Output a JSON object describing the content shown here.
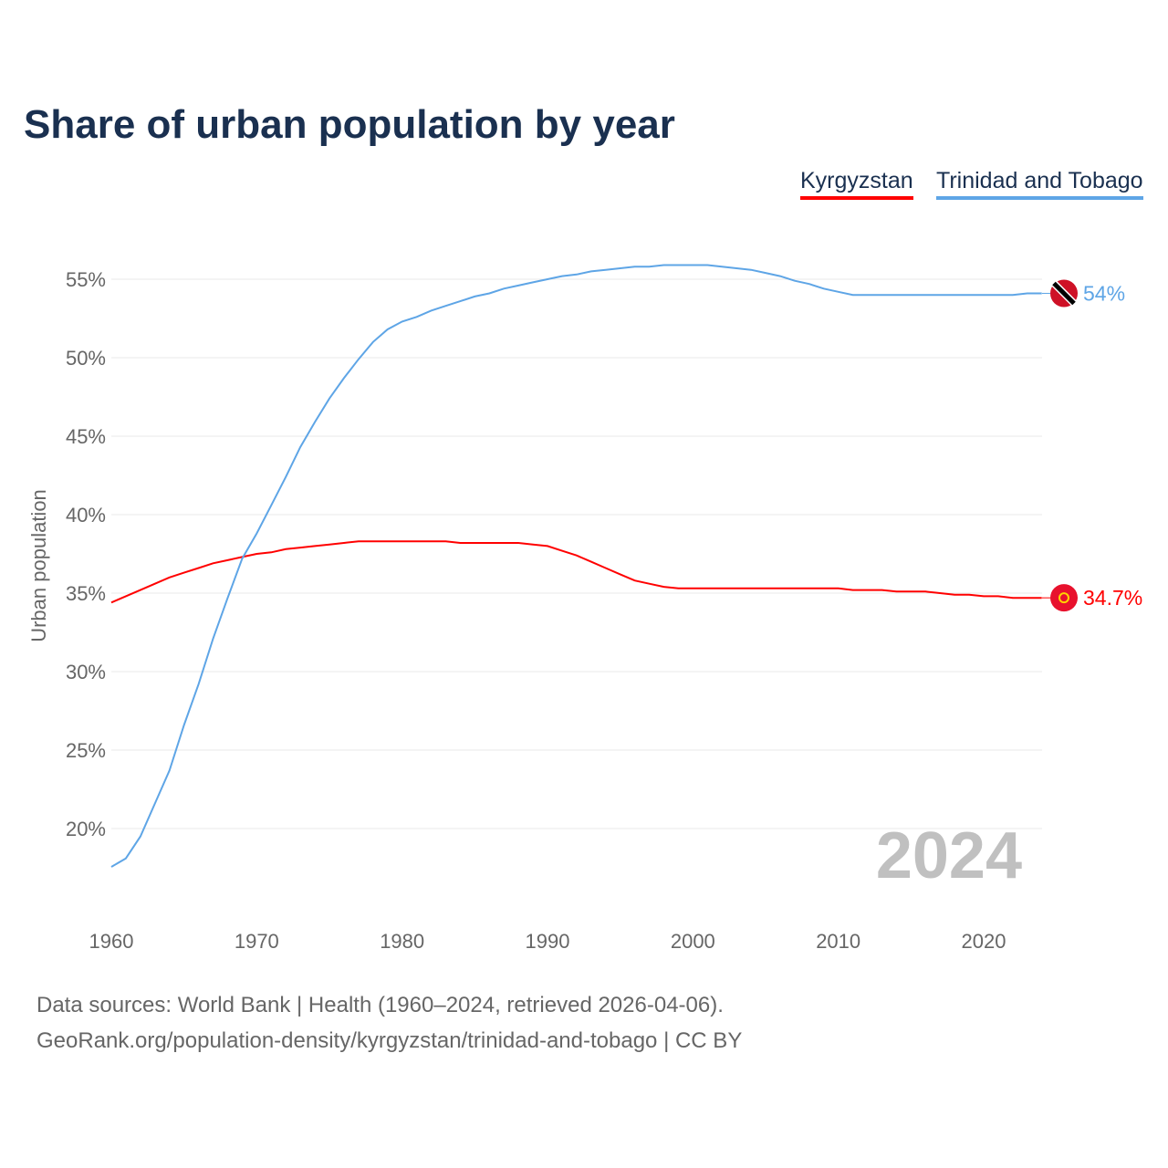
{
  "chart_data": {
    "type": "line",
    "title": "Share of urban population by year",
    "ylabel": "Urban population",
    "xlabel": "",
    "xlim": [
      1960,
      2024
    ],
    "ylim": [
      15.5,
      57
    ],
    "yticks": [
      20,
      25,
      30,
      35,
      40,
      45,
      50,
      55
    ],
    "ytick_labels": [
      "20%",
      "25%",
      "30%",
      "35%",
      "40%",
      "45%",
      "50%",
      "55%"
    ],
    "xticks": [
      1960,
      1970,
      1980,
      1990,
      2000,
      2010,
      2020
    ],
    "xtick_labels": [
      "1960",
      "1970",
      "1980",
      "1990",
      "2000",
      "2010",
      "2020"
    ],
    "grid": true,
    "legend_position": "top-right",
    "year_watermark": "2024",
    "x": [
      1960,
      1961,
      1962,
      1963,
      1964,
      1965,
      1966,
      1967,
      1968,
      1969,
      1970,
      1971,
      1972,
      1973,
      1974,
      1975,
      1976,
      1977,
      1978,
      1979,
      1980,
      1981,
      1982,
      1983,
      1984,
      1985,
      1986,
      1987,
      1988,
      1989,
      1990,
      1991,
      1992,
      1993,
      1994,
      1995,
      1996,
      1997,
      1998,
      1999,
      2000,
      2001,
      2002,
      2003,
      2004,
      2005,
      2006,
      2007,
      2008,
      2009,
      2010,
      2011,
      2012,
      2013,
      2014,
      2015,
      2016,
      2017,
      2018,
      2019,
      2020,
      2021,
      2022,
      2023,
      2024
    ],
    "series": [
      {
        "name": "Kyrgyzstan",
        "color": "#ff0000",
        "end_label": "34.7%",
        "flag": "kyrgyzstan-flag",
        "values": [
          34.4,
          34.8,
          35.2,
          35.6,
          36.0,
          36.3,
          36.6,
          36.9,
          37.1,
          37.3,
          37.5,
          37.6,
          37.8,
          37.9,
          38.0,
          38.1,
          38.2,
          38.3,
          38.3,
          38.3,
          38.3,
          38.3,
          38.3,
          38.3,
          38.2,
          38.2,
          38.2,
          38.2,
          38.2,
          38.1,
          38.0,
          37.7,
          37.4,
          37.0,
          36.6,
          36.2,
          35.8,
          35.6,
          35.4,
          35.3,
          35.3,
          35.3,
          35.3,
          35.3,
          35.3,
          35.3,
          35.3,
          35.3,
          35.3,
          35.3,
          35.3,
          35.2,
          35.2,
          35.2,
          35.1,
          35.1,
          35.1,
          35.0,
          34.9,
          34.9,
          34.8,
          34.8,
          34.7,
          34.7,
          34.7
        ]
      },
      {
        "name": "Trinidad and Tobago",
        "color": "#5ea5e6",
        "end_label": "54%",
        "flag": "trinidad-flag",
        "values": [
          17.56,
          18.1,
          19.5,
          21.6,
          23.7,
          26.6,
          29.2,
          32.1,
          34.7,
          37.2,
          38.8,
          40.6,
          42.4,
          44.3,
          45.9,
          47.4,
          48.7,
          49.9,
          51.0,
          51.8,
          52.3,
          52.6,
          53.0,
          53.3,
          53.6,
          53.9,
          54.1,
          54.4,
          54.6,
          54.8,
          55.0,
          55.2,
          55.3,
          55.5,
          55.6,
          55.7,
          55.8,
          55.8,
          55.9,
          55.9,
          55.9,
          55.9,
          55.8,
          55.7,
          55.6,
          55.4,
          55.2,
          54.9,
          54.7,
          54.4,
          54.2,
          54.0,
          54.0,
          54.0,
          54.0,
          54.0,
          54.0,
          54.0,
          54.0,
          54.0,
          54.0,
          54.0,
          54.0,
          54.1,
          54.1
        ]
      }
    ]
  },
  "footer": {
    "line1": "Data sources: World Bank | Health (1960–2024, retrieved 2026-04-06).",
    "line2": "GeoRank.org/population-density/kyrgyzstan/trinidad-and-tobago | CC BY"
  }
}
